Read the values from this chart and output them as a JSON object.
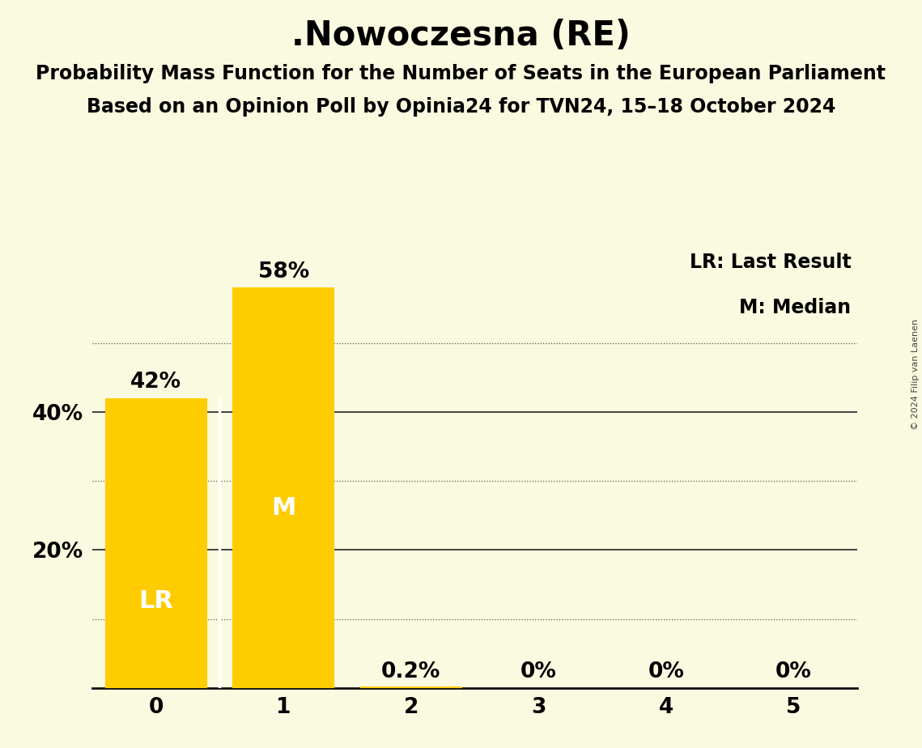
{
  "title": ".Nowoczesna (RE)",
  "subtitle1": "Probability Mass Function for the Number of Seats in the European Parliament",
  "subtitle2": "Based on an Opinion Poll by Opinia24 for TVN24, 15–18 October 2024",
  "copyright": "© 2024 Filip van Laenen",
  "categories": [
    0,
    1,
    2,
    3,
    4,
    5
  ],
  "values": [
    0.42,
    0.58,
    0.002,
    0.0,
    0.0,
    0.0
  ],
  "bar_labels": [
    "42%",
    "58%",
    "0.2%",
    "0%",
    "0%",
    "0%"
  ],
  "bar_color": "#FFCC00",
  "lr_bar": 0,
  "median_bar": 1,
  "lr_label": "LR",
  "median_label": "M",
  "label_color": "#FFFFFF",
  "background_color": "#FAFAE0",
  "title_fontsize": 30,
  "subtitle_fontsize": 17,
  "axis_tick_fontsize": 19,
  "bar_label_fontsize": 19,
  "bar_inner_fontsize": 22,
  "legend_fontsize": 17,
  "ylim": [
    0,
    0.65
  ],
  "grid_solid": [
    0.2,
    0.4
  ],
  "grid_dotted": [
    0.1,
    0.3,
    0.5
  ]
}
